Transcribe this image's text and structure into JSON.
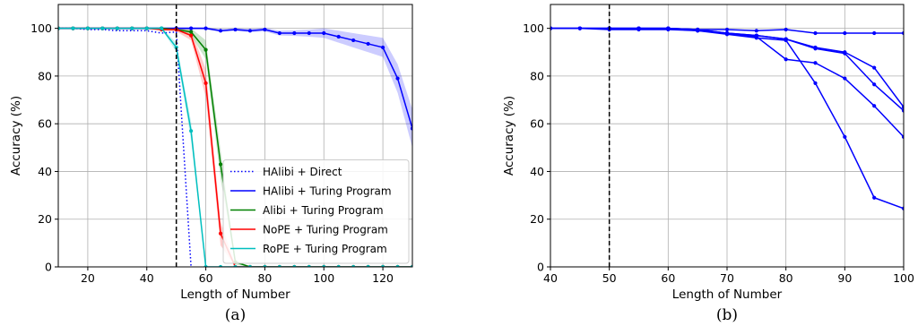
{
  "chart_data": [
    {
      "type": "line",
      "caption": "(a)",
      "xlabel": "Length of Number",
      "ylabel": "Accuracy (%)",
      "xlim": [
        10,
        130
      ],
      "ylim": [
        0,
        110
      ],
      "xticks": [
        20,
        40,
        60,
        80,
        100,
        120
      ],
      "yticks": [
        0,
        20,
        40,
        60,
        80,
        100
      ],
      "grid": true,
      "vline": 50,
      "legend_position": "lower-right",
      "series": [
        {
          "name": "HAlibi + Direct",
          "color": "#0000ff",
          "style": "dotted",
          "x": [
            10,
            15,
            20,
            25,
            30,
            35,
            40,
            45,
            50,
            55
          ],
          "y": [
            100,
            100,
            99.5,
            99.5,
            99,
            99,
            99,
            98,
            98.5,
            0
          ]
        },
        {
          "name": "HAlibi + Turing Program",
          "color": "#0000ff",
          "style": "solid",
          "band": true,
          "x": [
            10,
            15,
            20,
            25,
            30,
            35,
            40,
            45,
            50,
            55,
            60,
            65,
            70,
            75,
            80,
            85,
            90,
            95,
            100,
            105,
            110,
            115,
            120,
            125,
            130
          ],
          "y": [
            100,
            100,
            100,
            100,
            100,
            100,
            100,
            100,
            100,
            100,
            100,
            99,
            99.5,
            99,
            99.5,
            98,
            98,
            98,
            98,
            96.5,
            95,
            93.5,
            92,
            79,
            58
          ],
          "band_hw": [
            0.5,
            0.5,
            0.5,
            0.5,
            0.5,
            0.5,
            0.5,
            0.5,
            0.5,
            0.5,
            0.5,
            0.6,
            0.6,
            0.7,
            0.8,
            1,
            1.2,
            1.5,
            2,
            2.5,
            3,
            3.5,
            4,
            6,
            8
          ]
        },
        {
          "name": "Alibi + Turing Program",
          "color": "#008000",
          "style": "solid",
          "band": true,
          "x": [
            10,
            15,
            20,
            25,
            30,
            35,
            40,
            45,
            50,
            55,
            60,
            65,
            70,
            75,
            80,
            85,
            90,
            95,
            100,
            105,
            110,
            115,
            120,
            125,
            130
          ],
          "y": [
            100,
            100,
            100,
            100,
            100,
            100,
            100,
            100,
            99.5,
            98.5,
            91,
            43,
            2,
            0,
            0,
            0,
            0,
            0,
            0,
            0,
            0,
            0,
            0,
            0,
            0
          ],
          "band_hw": [
            0.3,
            0.3,
            0.3,
            0.3,
            0.3,
            0.3,
            0.3,
            0.3,
            0.5,
            1.5,
            4,
            6,
            1,
            0,
            0,
            0,
            0,
            0,
            0,
            0,
            0,
            0,
            0,
            0,
            0
          ]
        },
        {
          "name": "NoPE + Turing Program",
          "color": "#ff0000",
          "style": "solid",
          "band": true,
          "x": [
            10,
            15,
            20,
            25,
            30,
            35,
            40,
            45,
            50,
            55,
            60,
            65,
            70,
            75,
            80,
            85,
            90,
            95,
            100,
            105,
            110,
            115,
            120,
            125,
            130
          ],
          "y": [
            100,
            100,
            100,
            100,
            100,
            100,
            100,
            99.5,
            99.5,
            97,
            77,
            14,
            0,
            0,
            0,
            0,
            0,
            0,
            0,
            0,
            0,
            0,
            0,
            0,
            0
          ],
          "band_hw": [
            0.3,
            0.3,
            0.3,
            0.3,
            0.3,
            0.3,
            0.3,
            0.5,
            0.8,
            2,
            6,
            5,
            0.5,
            0,
            0,
            0,
            0,
            0,
            0,
            0,
            0,
            0,
            0,
            0,
            0
          ]
        },
        {
          "name": "RoPE + Turing Program",
          "color": "#00bfbf",
          "style": "solid",
          "band": true,
          "x": [
            10,
            15,
            20,
            25,
            30,
            35,
            40,
            45,
            50,
            55,
            60,
            65,
            70,
            75,
            80,
            85,
            90,
            95,
            100,
            105,
            110,
            115,
            120,
            125,
            130
          ],
          "y": [
            100,
            100,
            100,
            100,
            100,
            100,
            100,
            100,
            92,
            57,
            0,
            0,
            0,
            0,
            0,
            0,
            0,
            0,
            0,
            0,
            0,
            0,
            0,
            0,
            0
          ],
          "band_hw": [
            0.2,
            0.2,
            0.2,
            0.2,
            0.2,
            0.2,
            0.2,
            0.3,
            2,
            4,
            0,
            0,
            0,
            0,
            0,
            0,
            0,
            0,
            0,
            0,
            0,
            0,
            0,
            0,
            0
          ]
        }
      ]
    },
    {
      "type": "line",
      "caption": "(b)",
      "xlabel": "Length of Number",
      "ylabel": "Accuracy (%)",
      "xlim": [
        40,
        100
      ],
      "ylim": [
        0,
        110
      ],
      "xticks": [
        40,
        50,
        60,
        70,
        80,
        90,
        100
      ],
      "yticks": [
        0,
        20,
        40,
        60,
        80,
        100
      ],
      "grid": true,
      "vline": 50,
      "series": [
        {
          "color": "#0000ff",
          "x": [
            40,
            45,
            50,
            55,
            60,
            65,
            70,
            75,
            80,
            85,
            90,
            95,
            100
          ],
          "y": [
            100,
            100,
            100,
            100,
            100,
            99.5,
            99.5,
            99,
            99.5,
            98,
            98,
            98,
            98
          ]
        },
        {
          "color": "#0000ff",
          "x": [
            40,
            45,
            50,
            55,
            60,
            65,
            70,
            75,
            80,
            85,
            90,
            95,
            100
          ],
          "y": [
            100,
            100,
            100,
            100,
            100,
            99.5,
            98,
            97,
            95.5,
            92,
            90,
            83.5,
            67
          ]
        },
        {
          "color": "#0000ff",
          "x": [
            40,
            45,
            50,
            55,
            60,
            65,
            70,
            75,
            80,
            85,
            90,
            95,
            100
          ],
          "y": [
            100,
            100,
            100,
            100,
            100,
            99.5,
            98,
            97,
            95.5,
            91.5,
            89.5,
            76.5,
            65.5
          ]
        },
        {
          "color": "#0000ff",
          "x": [
            40,
            45,
            50,
            55,
            60,
            65,
            70,
            75,
            80,
            85,
            90,
            95,
            100
          ],
          "y": [
            100,
            100,
            100,
            100,
            100,
            99,
            98,
            96.5,
            87,
            85.5,
            79,
            67.5,
            54.5
          ]
        },
        {
          "color": "#0000ff",
          "x": [
            40,
            45,
            50,
            55,
            60,
            65,
            70,
            75,
            80,
            85,
            90,
            95,
            100
          ],
          "y": [
            100,
            100,
            99.5,
            99.5,
            99.5,
            99,
            97.5,
            96,
            95,
            77,
            54.5,
            29,
            24.5
          ]
        }
      ]
    }
  ]
}
